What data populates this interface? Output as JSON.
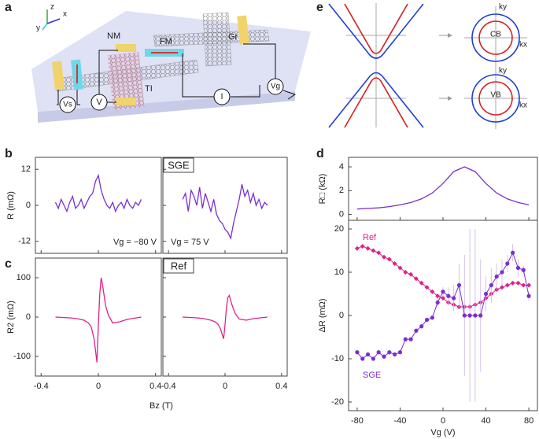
{
  "figure": {
    "panel_labels": [
      "a",
      "b",
      "c",
      "d",
      "e"
    ],
    "schematic_a": {
      "axes": [
        "z",
        "x",
        "y"
      ],
      "labels": [
        "NM",
        "FM",
        "Gr",
        "TI"
      ],
      "meters": [
        "Vs",
        "V",
        "I",
        "Vg"
      ]
    },
    "schematic_e": {
      "bands": [
        "CB",
        "VB"
      ],
      "axes": [
        "ky",
        "kx",
        "ky",
        "kx"
      ]
    }
  },
  "chart_data": [
    {
      "type": "line",
      "color": "#7a2fd0",
      "box_label": "SGE",
      "ylabel": "R (mΩ)",
      "annotation": "Vg = −80 V",
      "x": [
        -0.3,
        -0.28,
        -0.26,
        -0.24,
        -0.22,
        -0.2,
        -0.18,
        -0.16,
        -0.14,
        -0.12,
        -0.1,
        -0.08,
        -0.06,
        -0.04,
        -0.02,
        0,
        0.02,
        0.04,
        0.06,
        0.08,
        0.1,
        0.12,
        0.14,
        0.16,
        0.18,
        0.2,
        0.22,
        0.24,
        0.26,
        0.28,
        0.3
      ],
      "values": [
        1,
        -1,
        2,
        0,
        -2,
        1,
        3,
        -1,
        0,
        2,
        -1,
        1,
        3,
        4,
        8,
        10,
        5,
        2,
        0,
        -1,
        1,
        -2,
        0,
        1,
        -1,
        2,
        0,
        -1,
        1,
        0,
        2
      ],
      "xlim": [
        -0.44,
        0.44
      ],
      "ylim": [
        -16,
        16
      ],
      "xticks": [
        -0.4,
        0,
        0.4
      ],
      "yticks": [
        -12,
        0,
        12
      ]
    },
    {
      "type": "line",
      "color": "#7a2fd0",
      "annotation": "Vg = 75 V",
      "x": [
        -0.3,
        -0.28,
        -0.26,
        -0.24,
        -0.22,
        -0.2,
        -0.18,
        -0.16,
        -0.14,
        -0.12,
        -0.1,
        -0.08,
        -0.06,
        -0.04,
        -0.02,
        0,
        0.02,
        0.04,
        0.06,
        0.08,
        0.1,
        0.12,
        0.14,
        0.16,
        0.18,
        0.2,
        0.22,
        0.24,
        0.26,
        0.28,
        0.3
      ],
      "values": [
        2,
        4,
        -2,
        5,
        3,
        0,
        6,
        -1,
        4,
        1,
        -2,
        2,
        -3,
        -5,
        -6,
        -8,
        -9,
        -11,
        -6,
        -2,
        2,
        7,
        3,
        5,
        1,
        4,
        0,
        2,
        -1,
        1,
        0
      ],
      "xlim": [
        -0.44,
        0.44
      ],
      "ylim": [
        -16,
        16
      ],
      "xticks": [
        -0.4,
        0,
        0.4
      ],
      "yticks": [
        -12,
        0,
        12
      ]
    },
    {
      "type": "line",
      "color": "#e0218a",
      "box_label": "Ref",
      "ylabel": "R2 (mΩ)",
      "xlabel": "Bz (T)",
      "x": [
        -0.3,
        -0.2,
        -0.15,
        -0.1,
        -0.07,
        -0.05,
        -0.03,
        -0.02,
        -0.01,
        0,
        0.01,
        0.02,
        0.03,
        0.05,
        0.07,
        0.1,
        0.15,
        0.2,
        0.3
      ],
      "values": [
        0,
        -2,
        -4,
        -8,
        -15,
        -25,
        -55,
        -85,
        -115,
        -20,
        60,
        100,
        80,
        30,
        5,
        -15,
        -12,
        -6,
        0
      ],
      "xlim": [
        -0.44,
        0.44
      ],
      "ylim": [
        -150,
        150
      ],
      "xticks": [
        -0.4,
        0,
        0.4
      ],
      "yticks": [
        -100,
        0,
        100
      ]
    },
    {
      "type": "line",
      "color": "#e0218a",
      "x": [
        -0.3,
        -0.2,
        -0.15,
        -0.1,
        -0.07,
        -0.05,
        -0.03,
        -0.02,
        -0.01,
        0,
        0.01,
        0.02,
        0.03,
        0.05,
        0.07,
        0.1,
        0.15,
        0.2,
        0.3
      ],
      "values": [
        0,
        -2,
        -4,
        -8,
        -12,
        -18,
        -32,
        -45,
        -55,
        -20,
        25,
        50,
        55,
        30,
        10,
        -5,
        -8,
        -4,
        0
      ],
      "xlim": [
        -0.44,
        0.44
      ],
      "ylim": [
        -150,
        150
      ],
      "xticks": [
        -0.4,
        0,
        0.4
      ],
      "yticks": [
        -100,
        0,
        100
      ]
    },
    {
      "type": "line",
      "color": "#7a2fd0",
      "ylabel": "R□ (kΩ)",
      "x": [
        -80,
        -70,
        -60,
        -50,
        -40,
        -30,
        -20,
        -10,
        0,
        10,
        20,
        30,
        40,
        50,
        60,
        70,
        80
      ],
      "values": [
        0.45,
        0.5,
        0.55,
        0.65,
        0.8,
        1.0,
        1.3,
        1.8,
        2.6,
        3.6,
        4.0,
        3.6,
        2.6,
        1.8,
        1.3,
        1.0,
        0.8
      ],
      "xlim": [
        -88,
        88
      ],
      "ylim": [
        -0.5,
        4.8
      ],
      "xticks": [
        -80,
        -40,
        0,
        40,
        80
      ],
      "yticks": [
        0,
        2,
        4
      ]
    },
    {
      "type": "line",
      "ylabel": "ΔR (mΩ)",
      "xlabel": "Vg (V)",
      "x": [
        -80,
        -75,
        -70,
        -65,
        -60,
        -55,
        -50,
        -45,
        -40,
        -35,
        -30,
        -25,
        -20,
        -15,
        -10,
        -5,
        0,
        5,
        10,
        15,
        20,
        25,
        30,
        35,
        40,
        45,
        50,
        55,
        60,
        65,
        70,
        75,
        80
      ],
      "series": [
        {
          "name": "Ref",
          "color": "#e0218a",
          "values": [
            15.5,
            16,
            15.5,
            15,
            14.5,
            13.5,
            13,
            12,
            11,
            10,
            9.5,
            8.5,
            7.5,
            6.5,
            5.5,
            4.5,
            4,
            3,
            2.5,
            2,
            2,
            2,
            2.5,
            3,
            4,
            5,
            6,
            6.5,
            7,
            7.5,
            7.5,
            7,
            7
          ]
        },
        {
          "name": "SGE",
          "color": "#7a2fd0",
          "values": [
            -8.5,
            -10,
            -9,
            -10,
            -8.5,
            -9.5,
            -8.5,
            -9,
            -8.5,
            -5.5,
            -5.5,
            -3.5,
            -2.5,
            -1,
            -0.5,
            3,
            5.5,
            4.5,
            4,
            7,
            0,
            0,
            0,
            0,
            5,
            7,
            9,
            10,
            12,
            14.5,
            11,
            10.5,
            4.5
          ],
          "errors": [
            0.5,
            0.5,
            0.5,
            0.5,
            0.5,
            0.5,
            0.5,
            0.5,
            0.5,
            0.5,
            0.5,
            0.5,
            0.5,
            0.5,
            0.5,
            1,
            1,
            2,
            3,
            5,
            14,
            20,
            20,
            13,
            4,
            4,
            3,
            3,
            2,
            2,
            2,
            1,
            1
          ]
        }
      ],
      "xlim": [
        -88,
        88
      ],
      "ylim": [
        -22,
        22
      ],
      "xticks": [
        -80,
        -40,
        0,
        40,
        80
      ],
      "yticks": [
        -20,
        -10,
        0,
        10,
        20
      ]
    }
  ]
}
